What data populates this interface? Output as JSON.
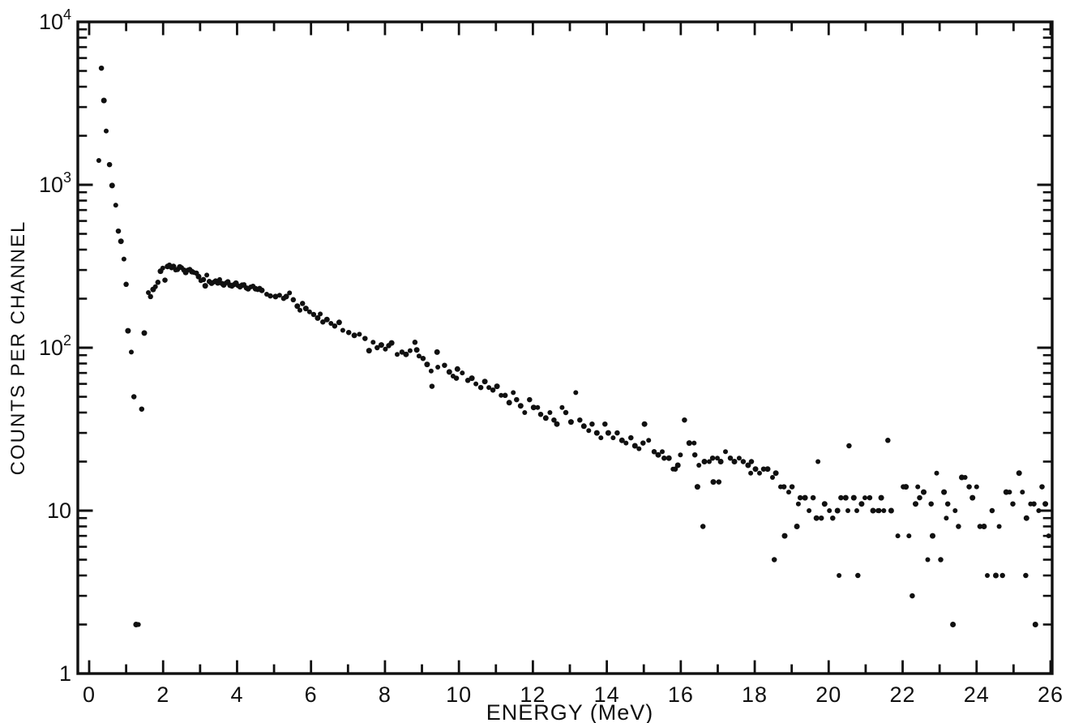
{
  "figure": {
    "background": "#ffffff",
    "ink_color": "#101010",
    "description": "Scanned scatter plot of a particle energy spectrum on a semi-log scale"
  },
  "chart_data": {
    "type": "scatter",
    "title": "",
    "xlabel": "ENERGY (MeV)",
    "ylabel": "COUNTS PER CHANNEL",
    "grid": false,
    "legend": null,
    "marker": "filled-dot",
    "x_axis": {
      "min": 0,
      "max": 26,
      "minor_tick_step": 1,
      "major_tick_step": 2,
      "tick_labels": [
        "0",
        "2",
        "4",
        "6",
        "8",
        "10",
        "12",
        "14",
        "16",
        "18",
        "20",
        "22",
        "24",
        "26"
      ]
    },
    "y_axis": {
      "scale": "log",
      "min": 1,
      "max": 10000,
      "decades": [
        0,
        1,
        2,
        3,
        4
      ],
      "tick_labels": [
        "1",
        "10",
        "10^2",
        "10^3",
        "10^4"
      ]
    },
    "points": [
      [
        0.26,
        1410
      ],
      [
        0.33,
        5200
      ],
      [
        0.4,
        3290
      ],
      [
        0.46,
        2140
      ],
      [
        0.55,
        1330
      ],
      [
        0.62,
        990
      ],
      [
        0.72,
        750
      ],
      [
        0.79,
        520
      ],
      [
        0.86,
        450
      ],
      [
        0.94,
        350
      ],
      [
        1.0,
        245
      ],
      [
        1.05,
        127
      ],
      [
        1.14,
        94
      ],
      [
        1.21,
        50
      ],
      [
        1.27,
        2
      ],
      [
        1.33,
        2
      ],
      [
        1.42,
        42
      ],
      [
        1.49,
        123
      ],
      [
        1.6,
        218
      ],
      [
        1.66,
        206
      ],
      [
        1.73,
        228
      ],
      [
        1.79,
        237
      ],
      [
        1.86,
        252
      ],
      [
        1.93,
        295
      ],
      [
        1.99,
        308
      ],
      [
        2.05,
        260
      ],
      [
        2.12,
        315
      ],
      [
        2.17,
        322
      ],
      [
        2.23,
        310
      ],
      [
        2.28,
        315
      ],
      [
        2.34,
        300
      ],
      [
        2.39,
        302
      ],
      [
        2.45,
        313
      ],
      [
        2.5,
        310
      ],
      [
        2.56,
        300
      ],
      [
        2.61,
        290
      ],
      [
        2.67,
        300
      ],
      [
        2.72,
        302
      ],
      [
        2.78,
        293
      ],
      [
        2.83,
        290
      ],
      [
        2.9,
        287
      ],
      [
        2.96,
        273
      ],
      [
        3.02,
        258
      ],
      [
        3.09,
        262
      ],
      [
        3.14,
        240
      ],
      [
        3.18,
        279
      ],
      [
        3.25,
        255
      ],
      [
        3.31,
        249
      ],
      [
        3.37,
        253
      ],
      [
        3.42,
        257
      ],
      [
        3.48,
        250
      ],
      [
        3.53,
        262
      ],
      [
        3.59,
        248
      ],
      [
        3.64,
        243
      ],
      [
        3.7,
        250
      ],
      [
        3.75,
        254
      ],
      [
        3.81,
        242
      ],
      [
        3.86,
        238
      ],
      [
        3.92,
        244
      ],
      [
        3.97,
        249
      ],
      [
        4.03,
        240
      ],
      [
        4.08,
        236
      ],
      [
        4.14,
        242
      ],
      [
        4.19,
        244
      ],
      [
        4.25,
        233
      ],
      [
        4.3,
        230
      ],
      [
        4.37,
        236
      ],
      [
        4.43,
        238
      ],
      [
        4.5,
        230
      ],
      [
        4.56,
        227
      ],
      [
        4.61,
        231
      ],
      [
        4.67,
        225
      ],
      [
        4.8,
        213
      ],
      [
        4.9,
        208
      ],
      [
        5.04,
        206
      ],
      [
        5.15,
        210
      ],
      [
        5.26,
        201
      ],
      [
        5.33,
        206
      ],
      [
        5.42,
        217
      ],
      [
        5.52,
        197
      ],
      [
        5.63,
        180
      ],
      [
        5.7,
        170
      ],
      [
        5.77,
        187
      ],
      [
        5.86,
        174
      ],
      [
        5.96,
        166
      ],
      [
        6.07,
        160
      ],
      [
        6.18,
        152
      ],
      [
        6.25,
        161
      ],
      [
        6.32,
        144
      ],
      [
        6.43,
        149
      ],
      [
        6.54,
        141
      ],
      [
        6.64,
        136
      ],
      [
        6.76,
        143
      ],
      [
        6.86,
        128
      ],
      [
        7.02,
        124
      ],
      [
        7.17,
        119
      ],
      [
        7.31,
        121
      ],
      [
        7.46,
        114
      ],
      [
        7.57,
        96
      ],
      [
        7.68,
        108
      ],
      [
        7.79,
        100
      ],
      [
        7.9,
        104
      ],
      [
        8.01,
        98
      ],
      [
        8.1,
        103
      ],
      [
        8.18,
        107
      ],
      [
        8.33,
        91
      ],
      [
        8.46,
        94
      ],
      [
        8.57,
        91
      ],
      [
        8.68,
        96
      ],
      [
        8.81,
        108
      ],
      [
        8.86,
        97
      ],
      [
        8.92,
        89
      ],
      [
        9.03,
        86
      ],
      [
        9.14,
        79
      ],
      [
        9.25,
        72
      ],
      [
        9.27,
        58
      ],
      [
        9.41,
        94
      ],
      [
        9.43,
        76
      ],
      [
        9.61,
        78
      ],
      [
        9.74,
        71
      ],
      [
        9.84,
        67
      ],
      [
        9.93,
        65
      ],
      [
        9.96,
        74
      ],
      [
        10.09,
        70
      ],
      [
        10.24,
        63
      ],
      [
        10.35,
        65
      ],
      [
        10.46,
        60
      ],
      [
        10.59,
        57
      ],
      [
        10.7,
        62
      ],
      [
        10.81,
        57
      ],
      [
        10.92,
        55
      ],
      [
        11.03,
        58
      ],
      [
        11.14,
        51
      ],
      [
        11.25,
        51
      ],
      [
        11.36,
        46
      ],
      [
        11.47,
        53
      ],
      [
        11.56,
        48
      ],
      [
        11.67,
        44
      ],
      [
        11.78,
        40
      ],
      [
        11.91,
        48
      ],
      [
        12.02,
        43
      ],
      [
        12.13,
        43
      ],
      [
        12.21,
        39
      ],
      [
        12.35,
        37
      ],
      [
        12.46,
        40
      ],
      [
        12.57,
        36
      ],
      [
        12.65,
        34
      ],
      [
        12.79,
        43
      ],
      [
        12.89,
        40
      ],
      [
        13.03,
        35
      ],
      [
        13.16,
        53
      ],
      [
        13.27,
        36
      ],
      [
        13.38,
        33
      ],
      [
        13.51,
        31
      ],
      [
        13.6,
        34
      ],
      [
        13.73,
        30
      ],
      [
        13.84,
        28
      ],
      [
        13.95,
        34
      ],
      [
        14.04,
        30
      ],
      [
        14.17,
        28
      ],
      [
        14.28,
        30
      ],
      [
        14.41,
        27
      ],
      [
        14.52,
        26
      ],
      [
        14.65,
        28
      ],
      [
        14.76,
        25
      ],
      [
        14.87,
        24
      ],
      [
        14.98,
        26
      ],
      [
        15.02,
        34
      ],
      [
        15.13,
        27
      ],
      [
        15.28,
        23
      ],
      [
        15.39,
        22
      ],
      [
        15.5,
        23
      ],
      [
        15.55,
        21
      ],
      [
        15.68,
        21
      ],
      [
        15.79,
        18
      ],
      [
        15.85,
        18
      ],
      [
        15.92,
        19
      ],
      [
        15.99,
        22
      ],
      [
        16.1,
        36
      ],
      [
        16.23,
        26
      ],
      [
        16.36,
        26
      ],
      [
        16.38,
        22
      ],
      [
        16.45,
        14
      ],
      [
        16.49,
        19
      ],
      [
        16.6,
        8
      ],
      [
        16.64,
        20
      ],
      [
        16.77,
        20
      ],
      [
        16.86,
        21
      ],
      [
        16.88,
        15
      ],
      [
        16.99,
        21
      ],
      [
        17.03,
        15
      ],
      [
        17.08,
        20
      ],
      [
        17.21,
        23
      ],
      [
        17.34,
        21
      ],
      [
        17.45,
        20
      ],
      [
        17.58,
        21
      ],
      [
        17.69,
        20
      ],
      [
        17.82,
        19
      ],
      [
        17.89,
        17
      ],
      [
        17.91,
        20
      ],
      [
        18.02,
        18
      ],
      [
        18.13,
        17
      ],
      [
        18.24,
        18
      ],
      [
        18.35,
        18
      ],
      [
        18.48,
        16
      ],
      [
        18.53,
        5
      ],
      [
        18.57,
        17
      ],
      [
        18.7,
        14
      ],
      [
        18.79,
        14
      ],
      [
        18.81,
        7
      ],
      [
        18.92,
        13
      ],
      [
        19.01,
        14
      ],
      [
        19.14,
        8
      ],
      [
        19.18,
        11
      ],
      [
        19.23,
        12
      ],
      [
        19.36,
        12
      ],
      [
        19.47,
        10
      ],
      [
        19.58,
        12
      ],
      [
        19.67,
        9
      ],
      [
        19.71,
        20
      ],
      [
        19.8,
        9
      ],
      [
        19.89,
        11
      ],
      [
        20.02,
        10
      ],
      [
        20.11,
        9
      ],
      [
        20.24,
        10
      ],
      [
        20.28,
        4
      ],
      [
        20.33,
        12
      ],
      [
        20.46,
        12
      ],
      [
        20.52,
        10
      ],
      [
        20.55,
        25
      ],
      [
        20.68,
        12
      ],
      [
        20.76,
        10
      ],
      [
        20.79,
        4
      ],
      [
        20.89,
        11
      ],
      [
        20.98,
        12
      ],
      [
        21.11,
        12
      ],
      [
        21.2,
        10
      ],
      [
        21.33,
        10
      ],
      [
        21.36,
        10
      ],
      [
        21.42,
        12
      ],
      [
        21.49,
        10
      ],
      [
        21.6,
        27
      ],
      [
        21.69,
        10
      ],
      [
        21.87,
        7
      ],
      [
        22.02,
        14
      ],
      [
        22.09,
        14
      ],
      [
        22.17,
        7
      ],
      [
        22.26,
        3
      ],
      [
        22.35,
        11
      ],
      [
        22.41,
        14
      ],
      [
        22.46,
        12
      ],
      [
        22.57,
        13
      ],
      [
        22.68,
        5
      ],
      [
        22.77,
        11
      ],
      [
        22.81,
        7
      ],
      [
        22.92,
        17
      ],
      [
        23.03,
        5
      ],
      [
        23.12,
        13
      ],
      [
        23.18,
        9
      ],
      [
        23.22,
        11
      ],
      [
        23.36,
        2
      ],
      [
        23.42,
        10
      ],
      [
        23.51,
        8
      ],
      [
        23.6,
        16
      ],
      [
        23.69,
        16
      ],
      [
        23.8,
        14
      ],
      [
        23.89,
        12
      ],
      [
        24.0,
        14
      ],
      [
        24.09,
        8
      ],
      [
        24.2,
        8
      ],
      [
        24.29,
        4
      ],
      [
        24.42,
        10
      ],
      [
        24.52,
        4
      ],
      [
        24.61,
        8
      ],
      [
        24.7,
        4
      ],
      [
        24.8,
        13
      ],
      [
        24.89,
        13
      ],
      [
        24.98,
        11
      ],
      [
        25.15,
        17
      ],
      [
        25.24,
        13
      ],
      [
        25.33,
        4
      ],
      [
        25.35,
        9
      ],
      [
        25.46,
        11
      ],
      [
        25.55,
        11
      ],
      [
        25.59,
        2
      ],
      [
        25.68,
        10
      ],
      [
        25.77,
        14
      ],
      [
        25.86,
        11
      ],
      [
        25.95,
        7
      ]
    ]
  }
}
